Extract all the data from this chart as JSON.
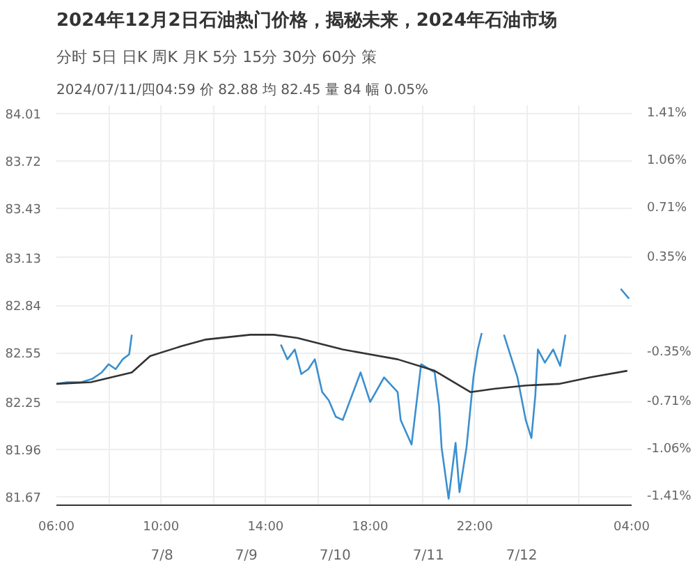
{
  "chart_data": {
    "type": "line",
    "title": "2024年12月2日石油热门价格，揭秘未来，2024年石油市场",
    "subtitle": "2024/07/11/四04:59 价 82.88 均 82.45 量 84 幅 0.05%",
    "annotations": [
      "分时",
      "5日",
      "日K",
      "周K",
      "月K",
      "5分",
      "15分",
      "30分",
      "60分",
      "策",
      "7/8",
      "7/9",
      "7/10",
      "7/11",
      "7/12"
    ],
    "series": [
      {
        "color": "#3a8fd0",
        "x": [
          "2024-07-10T06:00",
          "2024-07-10T06:25",
          "2024-07-10T06:57",
          "2024-07-10T07:22",
          "2024-07-10T07:44",
          "2024-07-10T08:00",
          "2024-07-10T08:16",
          "2024-07-10T08:32",
          "2024-07-10T08:47",
          "2024-07-10T08:53",
          "2024-07-10T12:00",
          "2024-07-10T14:35",
          "2024-07-10T14:50",
          "2024-07-10T15:07",
          "2024-07-10T15:22",
          "2024-07-10T15:38",
          "2024-07-10T15:53",
          "2024-07-10T16:10",
          "2024-07-10T16:25",
          "2024-07-10T16:41",
          "2024-07-10T16:57",
          "2024-07-10T17:38",
          "2024-07-10T18:00",
          "2024-07-10T18:32",
          "2024-07-10T19:03",
          "2024-07-10T19:10",
          "2024-07-10T19:35",
          "2024-07-10T19:57",
          "2024-07-10T20:28",
          "2024-07-10T20:38",
          "2024-07-10T20:44",
          "2024-07-10T21:00",
          "2024-07-10T21:16",
          "2024-07-10T21:25",
          "2024-07-10T21:41",
          "2024-07-10T21:57",
          "2024-07-10T22:07",
          "2024-07-10T22:16",
          "2024-07-10T23:00",
          "2024-07-10T23:07",
          "2024-07-10T23:38",
          "2024-07-10T23:57",
          "2024-07-11T00:10",
          "2024-07-11T00:19",
          "2024-07-11T00:25",
          "2024-07-11T00:41",
          "2024-07-11T01:00",
          "2024-07-11T01:16",
          "2024-07-11T01:28",
          "2024-07-11T02:00",
          "2024-07-11T03:35",
          "2024-07-11T03:54"
        ],
        "values": [
          82.36,
          82.37,
          82.37,
          82.39,
          82.43,
          82.48,
          82.45,
          82.51,
          82.54,
          82.66,
          null,
          82.6,
          82.51,
          82.57,
          82.42,
          82.45,
          82.51,
          82.31,
          82.26,
          82.16,
          82.14,
          82.43,
          82.25,
          82.4,
          82.31,
          82.14,
          81.99,
          82.48,
          82.43,
          82.23,
          81.97,
          81.66,
          82.0,
          81.7,
          81.97,
          82.4,
          82.57,
          82.67,
          null,
          82.66,
          82.4,
          82.14,
          82.03,
          82.29,
          82.57,
          82.49,
          82.57,
          82.47,
          82.66,
          null,
          82.94,
          82.88
        ]
      },
      {
        "color": "#333333",
        "x": [
          "2024-07-10T06:00",
          "2024-07-10T07:19",
          "2024-07-10T08:53",
          "2024-07-10T09:35",
          "2024-07-10T10:47",
          "2024-07-10T11:41",
          "2024-07-10T13:25",
          "2024-07-10T14:19",
          "2024-07-10T15:13",
          "2024-07-10T16:57",
          "2024-07-10T19:03",
          "2024-07-10T20:28",
          "2024-07-10T21:50",
          "2024-07-10T22:44",
          "2024-07-10T23:57",
          "2024-07-11T01:13",
          "2024-07-11T02:25",
          "2024-07-11T03:50"
        ],
        "values": [
          82.36,
          82.37,
          82.43,
          82.53,
          82.59,
          82.63,
          82.66,
          82.66,
          82.64,
          82.57,
          82.51,
          82.44,
          82.31,
          82.33,
          82.35,
          82.36,
          82.4,
          82.44
        ]
      }
    ],
    "xlim": [
      "2024-07-10T06:00",
      "2024-07-11T04:00"
    ],
    "xticks": [
      {
        "value": "2024-07-10T06:00",
        "label": "06:00"
      },
      {
        "value": "2024-07-10T08:00",
        "label": null
      },
      {
        "value": "2024-07-10T10:00",
        "label": "10:00"
      },
      {
        "value": "2024-07-10T12:00",
        "label": null
      },
      {
        "value": "2024-07-10T14:00",
        "label": "14:00"
      },
      {
        "value": "2024-07-10T16:00",
        "label": null
      },
      {
        "value": "2024-07-10T18:00",
        "label": "18:00"
      },
      {
        "value": "2024-07-10T20:00",
        "label": null
      },
      {
        "value": "2024-07-10T22:00",
        "label": "22:00"
      },
      {
        "value": "2024-07-11T00:00",
        "label": null
      },
      {
        "value": "2024-07-11T02:00",
        "label": null
      },
      {
        "value": "2024-07-11T04:00",
        "label": "04:00"
      }
    ],
    "ylim": [
      81.62,
      84.06
    ],
    "yticks": [
      81.67,
      81.96,
      82.25,
      82.55,
      82.84,
      83.13,
      83.43,
      83.72,
      84.01
    ],
    "y2lim": [
      -1.47,
      1.47
    ],
    "y2ticks": [
      {
        "value": -1.41,
        "label": "-1.41%"
      },
      {
        "value": -1.06,
        "label": "-1.06%"
      },
      {
        "value": -0.71,
        "label": "-0.71%"
      },
      {
        "value": -0.35,
        "label": "-0.35%"
      },
      {
        "value": 0.35,
        "label": "0.35%"
      },
      {
        "value": 0.71,
        "label": "0.71%"
      },
      {
        "value": 1.06,
        "label": "1.06%"
      },
      {
        "value": 1.41,
        "label": "1.41%"
      }
    ],
    "grid": true,
    "line_style": "solid",
    "marker": "none"
  }
}
